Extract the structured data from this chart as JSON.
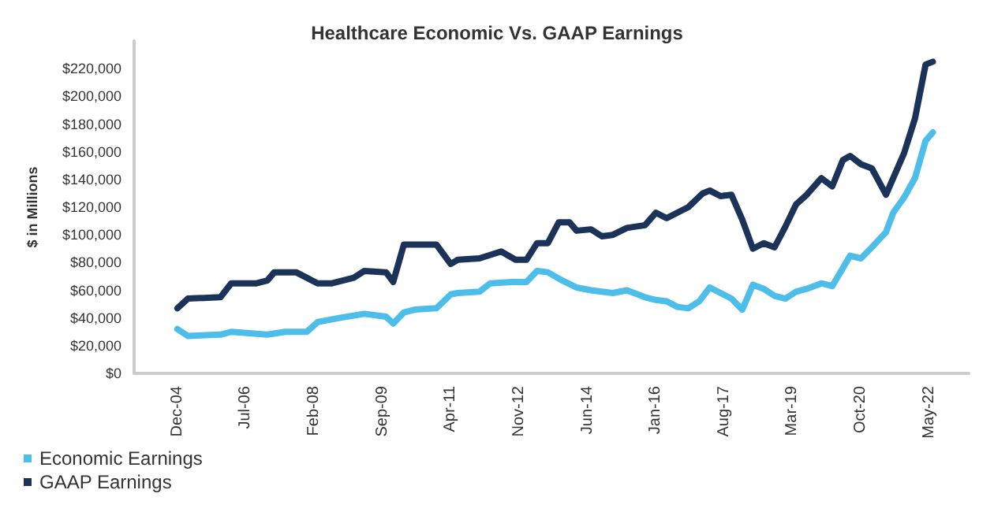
{
  "chart_data": {
    "type": "line",
    "title": "Healthcare Economic Vs. GAAP Earnings",
    "ylabel": "$ in Millions",
    "xlim": [
      "2003-12",
      "2023-04"
    ],
    "ylim": [
      0,
      240000
    ],
    "xticks": [
      {
        "value": "2004-12",
        "label": "Dec-04"
      },
      {
        "value": "2006-07",
        "label": "Jul-06"
      },
      {
        "value": "2008-02",
        "label": "Feb-08"
      },
      {
        "value": "2009-09",
        "label": "Sep-09"
      },
      {
        "value": "2011-04",
        "label": "Apr-11"
      },
      {
        "value": "2012-11",
        "label": "Nov-12"
      },
      {
        "value": "2014-06",
        "label": "Jun-14"
      },
      {
        "value": "2016-01",
        "label": "Jan-16"
      },
      {
        "value": "2017-08",
        "label": "Aug-17"
      },
      {
        "value": "2019-03",
        "label": "Mar-19"
      },
      {
        "value": "2020-10",
        "label": "Oct-20"
      },
      {
        "value": "2022-05",
        "label": "May-22"
      }
    ],
    "yticks": [
      {
        "value": 0,
        "label": "$0"
      },
      {
        "value": 20000,
        "label": "$20,000"
      },
      {
        "value": 40000,
        "label": "$40,000"
      },
      {
        "value": 60000,
        "label": "$60,000"
      },
      {
        "value": 80000,
        "label": "$80,000"
      },
      {
        "value": 100000,
        "label": "$100,000"
      },
      {
        "value": 120000,
        "label": "$120,000"
      },
      {
        "value": 140000,
        "label": "$140,000"
      },
      {
        "value": 160000,
        "label": "$160,000"
      },
      {
        "value": 180000,
        "label": "$180,000"
      },
      {
        "value": 200000,
        "label": "$200,000"
      },
      {
        "value": 220000,
        "label": "$220,000"
      }
    ],
    "grid": false,
    "legend": "bottom left",
    "marker": "none",
    "line_style": "solid",
    "series": [
      {
        "name": "Economic Earnings",
        "color": "#4dbde9",
        "x": [
          "2004-12",
          "2005-03",
          "2005-12",
          "2006-03",
          "2007-01",
          "2007-06",
          "2007-12",
          "2008-03",
          "2008-09",
          "2009-04",
          "2009-10",
          "2009-12",
          "2010-03",
          "2010-06",
          "2010-12",
          "2011-04",
          "2011-06",
          "2011-12",
          "2012-03",
          "2012-09",
          "2013-01",
          "2013-04",
          "2013-07",
          "2013-11",
          "2014-03",
          "2014-07",
          "2014-10",
          "2015-01",
          "2015-05",
          "2015-10",
          "2016-01",
          "2016-04",
          "2016-07",
          "2016-10",
          "2017-01",
          "2017-04",
          "2017-07",
          "2017-10",
          "2018-01",
          "2018-04",
          "2018-07",
          "2018-10",
          "2019-01",
          "2019-04",
          "2019-07",
          "2019-11",
          "2020-02",
          "2020-05",
          "2020-07",
          "2020-10",
          "2021-01",
          "2021-05",
          "2021-07",
          "2021-10",
          "2022-01",
          "2022-04",
          "2022-06"
        ],
        "values": [
          32000,
          27000,
          28000,
          30000,
          28000,
          30000,
          30000,
          37000,
          40000,
          43000,
          41000,
          36000,
          44000,
          46000,
          47000,
          57000,
          58000,
          59000,
          65000,
          66000,
          66000,
          74000,
          73000,
          67000,
          62000,
          60000,
          59000,
          58000,
          60000,
          55000,
          53000,
          52000,
          48000,
          47000,
          52000,
          62000,
          58000,
          54000,
          46000,
          64000,
          61000,
          56000,
          54000,
          59000,
          61000,
          65000,
          63000,
          76000,
          85000,
          83000,
          91000,
          102000,
          116000,
          127000,
          141000,
          168000,
          174000
        ]
      },
      {
        "name": "GAAP Earnings",
        "color": "#1b3358",
        "x": [
          "2004-12",
          "2005-03",
          "2005-12",
          "2006-03",
          "2006-10",
          "2007-01",
          "2007-03",
          "2007-09",
          "2007-12",
          "2008-03",
          "2008-07",
          "2009-01",
          "2009-04",
          "2009-10",
          "2009-12",
          "2010-03",
          "2010-12",
          "2011-04",
          "2011-06",
          "2011-12",
          "2012-06",
          "2012-10",
          "2013-01",
          "2013-04",
          "2013-07",
          "2013-10",
          "2014-01",
          "2014-03",
          "2014-07",
          "2014-10",
          "2015-01",
          "2015-05",
          "2015-10",
          "2016-01",
          "2016-04",
          "2016-07",
          "2016-10",
          "2017-02",
          "2017-04",
          "2017-07",
          "2017-10",
          "2018-01",
          "2018-04",
          "2018-07",
          "2018-10",
          "2019-01",
          "2019-04",
          "2019-07",
          "2019-11",
          "2020-02",
          "2020-05",
          "2020-07",
          "2020-10",
          "2021-01",
          "2021-05",
          "2021-07",
          "2021-10",
          "2022-01",
          "2022-04",
          "2022-06"
        ],
        "values": [
          47000,
          54000,
          55000,
          65000,
          65000,
          67000,
          73000,
          73000,
          69000,
          65000,
          65000,
          69000,
          74000,
          73000,
          66000,
          93000,
          93000,
          79000,
          82000,
          83000,
          88000,
          82000,
          82000,
          94000,
          94000,
          109000,
          109000,
          103000,
          104000,
          99000,
          100000,
          105000,
          107000,
          116000,
          112000,
          116000,
          120000,
          130000,
          132000,
          128000,
          129000,
          111000,
          90000,
          94000,
          91000,
          106000,
          122000,
          129000,
          141000,
          135000,
          154000,
          157000,
          151000,
          148000,
          129000,
          141000,
          159000,
          184000,
          223000,
          225000
        ]
      }
    ]
  }
}
